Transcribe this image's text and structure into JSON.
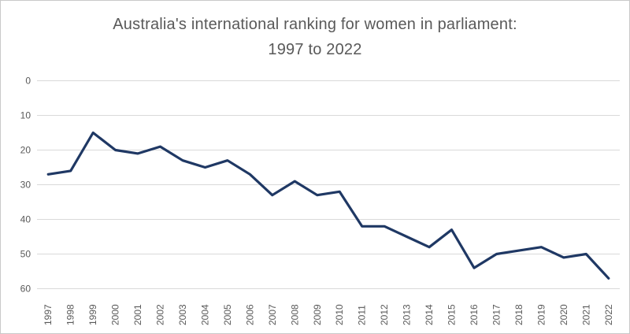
{
  "page": {
    "background": "#ffffff",
    "border_color": "#c9c9c9"
  },
  "chart_data": {
    "type": "line",
    "title_lines": [
      "Australia's international ranking for women in parliament:",
      "1997 to 2022"
    ],
    "categories": [
      1997,
      1998,
      1999,
      2000,
      2001,
      2002,
      2003,
      2004,
      2005,
      2006,
      2007,
      2008,
      2009,
      2010,
      2011,
      2012,
      2013,
      2014,
      2015,
      2016,
      2017,
      2018,
      2019,
      2020,
      2021,
      2022
    ],
    "values": [
      27,
      26,
      15,
      20,
      21,
      19,
      23,
      25,
      23,
      27,
      33,
      29,
      33,
      32,
      42,
      42,
      45,
      48,
      43,
      54,
      50,
      49,
      48,
      51,
      50,
      57
    ],
    "y_ticks": [
      0,
      10,
      20,
      30,
      40,
      50,
      60
    ],
    "ylim": [
      0,
      60
    ],
    "y_axis_inverted": true,
    "grid": "horizontal-only",
    "legend": "none",
    "line_color": "#1f3864",
    "gridline_color": "#d9d9d9",
    "text_color": "#595959"
  }
}
